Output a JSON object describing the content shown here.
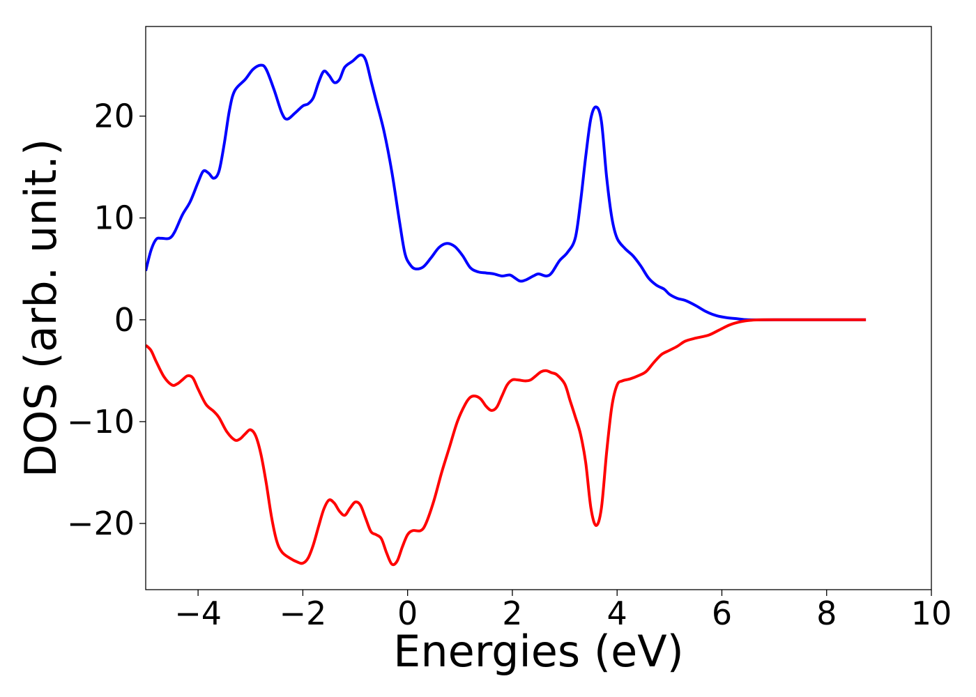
{
  "chart_data": {
    "type": "line",
    "title": "",
    "xlabel": "Energies (eV)",
    "ylabel": "DOS (arb. unit.)",
    "xlim": [
      -5,
      10
    ],
    "ylim": [
      -26.5,
      28.8
    ],
    "grid": false,
    "legend": "none",
    "x_ticks": [
      -4,
      -2,
      0,
      2,
      4,
      6,
      8,
      10
    ],
    "x_tick_labels": [
      "−4",
      "−2",
      "0",
      "2",
      "4",
      "6",
      "8",
      "10"
    ],
    "y_ticks": [
      -20,
      -10,
      0,
      10,
      20
    ],
    "y_tick_labels": [
      "−20",
      "−10",
      "0",
      "10",
      "20"
    ],
    "series": [
      {
        "color": "#0000ff",
        "points": [
          [
            -5.0,
            4.8
          ],
          [
            -4.9,
            6.8
          ],
          [
            -4.8,
            7.9
          ],
          [
            -4.7,
            8.0
          ],
          [
            -4.55,
            8.0
          ],
          [
            -4.45,
            8.6
          ],
          [
            -4.3,
            10.3
          ],
          [
            -4.15,
            11.6
          ],
          [
            -4.0,
            13.5
          ],
          [
            -3.9,
            14.6
          ],
          [
            -3.8,
            14.4
          ],
          [
            -3.7,
            13.9
          ],
          [
            -3.6,
            14.6
          ],
          [
            -3.5,
            17.3
          ],
          [
            -3.4,
            20.6
          ],
          [
            -3.3,
            22.5
          ],
          [
            -3.1,
            23.6
          ],
          [
            -2.95,
            24.6
          ],
          [
            -2.8,
            25.0
          ],
          [
            -2.7,
            24.6
          ],
          [
            -2.55,
            22.6
          ],
          [
            -2.4,
            20.3
          ],
          [
            -2.3,
            19.7
          ],
          [
            -2.15,
            20.3
          ],
          [
            -2.0,
            21.0
          ],
          [
            -1.9,
            21.2
          ],
          [
            -1.8,
            21.8
          ],
          [
            -1.7,
            23.3
          ],
          [
            -1.6,
            24.4
          ],
          [
            -1.5,
            24.0
          ],
          [
            -1.4,
            23.3
          ],
          [
            -1.3,
            23.6
          ],
          [
            -1.2,
            24.8
          ],
          [
            -1.05,
            25.4
          ],
          [
            -0.9,
            26.0
          ],
          [
            -0.8,
            25.5
          ],
          [
            -0.7,
            23.5
          ],
          [
            -0.6,
            21.5
          ],
          [
            -0.45,
            18.5
          ],
          [
            -0.3,
            14.5
          ],
          [
            -0.15,
            9.5
          ],
          [
            -0.05,
            6.5
          ],
          [
            0.05,
            5.4
          ],
          [
            0.15,
            5.0
          ],
          [
            0.3,
            5.2
          ],
          [
            0.45,
            6.1
          ],
          [
            0.6,
            7.1
          ],
          [
            0.75,
            7.5
          ],
          [
            0.9,
            7.2
          ],
          [
            1.05,
            6.3
          ],
          [
            1.2,
            5.1
          ],
          [
            1.35,
            4.7
          ],
          [
            1.5,
            4.6
          ],
          [
            1.65,
            4.5
          ],
          [
            1.8,
            4.3
          ],
          [
            1.95,
            4.4
          ],
          [
            2.05,
            4.1
          ],
          [
            2.15,
            3.8
          ],
          [
            2.25,
            3.9
          ],
          [
            2.4,
            4.3
          ],
          [
            2.5,
            4.5
          ],
          [
            2.65,
            4.3
          ],
          [
            2.75,
            4.6
          ],
          [
            2.9,
            5.8
          ],
          [
            3.05,
            6.6
          ],
          [
            3.2,
            8.0
          ],
          [
            3.3,
            11.5
          ],
          [
            3.4,
            16.0
          ],
          [
            3.5,
            19.8
          ],
          [
            3.6,
            20.9
          ],
          [
            3.7,
            19.5
          ],
          [
            3.8,
            14.0
          ],
          [
            3.9,
            10.0
          ],
          [
            4.0,
            8.0
          ],
          [
            4.15,
            7.0
          ],
          [
            4.3,
            6.3
          ],
          [
            4.45,
            5.3
          ],
          [
            4.6,
            4.1
          ],
          [
            4.75,
            3.4
          ],
          [
            4.9,
            3.0
          ],
          [
            5.0,
            2.5
          ],
          [
            5.15,
            2.1
          ],
          [
            5.3,
            1.9
          ],
          [
            5.5,
            1.4
          ],
          [
            5.7,
            0.8
          ],
          [
            5.9,
            0.4
          ],
          [
            6.1,
            0.2
          ],
          [
            6.3,
            0.1
          ],
          [
            6.5,
            0.0
          ],
          [
            7.0,
            0.0
          ],
          [
            7.5,
            0.0
          ],
          [
            8.0,
            0.0
          ],
          [
            8.5,
            0.0
          ],
          [
            8.75,
            0.0
          ]
        ]
      },
      {
        "color": "#ff0000",
        "points": [
          [
            -5.0,
            -2.5
          ],
          [
            -4.9,
            -3.0
          ],
          [
            -4.8,
            -4.1
          ],
          [
            -4.65,
            -5.6
          ],
          [
            -4.5,
            -6.4
          ],
          [
            -4.4,
            -6.3
          ],
          [
            -4.3,
            -5.9
          ],
          [
            -4.2,
            -5.5
          ],
          [
            -4.1,
            -5.7
          ],
          [
            -4.0,
            -6.8
          ],
          [
            -3.85,
            -8.3
          ],
          [
            -3.7,
            -9.0
          ],
          [
            -3.6,
            -9.6
          ],
          [
            -3.45,
            -11.0
          ],
          [
            -3.3,
            -11.8
          ],
          [
            -3.2,
            -11.7
          ],
          [
            -3.1,
            -11.2
          ],
          [
            -3.0,
            -10.8
          ],
          [
            -2.9,
            -11.4
          ],
          [
            -2.8,
            -13.2
          ],
          [
            -2.7,
            -16.0
          ],
          [
            -2.6,
            -19.3
          ],
          [
            -2.5,
            -21.7
          ],
          [
            -2.4,
            -22.8
          ],
          [
            -2.25,
            -23.4
          ],
          [
            -2.1,
            -23.8
          ],
          [
            -2.0,
            -23.9
          ],
          [
            -1.9,
            -23.4
          ],
          [
            -1.8,
            -22.1
          ],
          [
            -1.7,
            -20.3
          ],
          [
            -1.6,
            -18.6
          ],
          [
            -1.5,
            -17.7
          ],
          [
            -1.4,
            -18.0
          ],
          [
            -1.3,
            -18.8
          ],
          [
            -1.2,
            -19.2
          ],
          [
            -1.1,
            -18.5
          ],
          [
            -1.0,
            -17.9
          ],
          [
            -0.9,
            -18.2
          ],
          [
            -0.8,
            -19.5
          ],
          [
            -0.7,
            -20.8
          ],
          [
            -0.6,
            -21.1
          ],
          [
            -0.5,
            -21.5
          ],
          [
            -0.4,
            -22.9
          ],
          [
            -0.3,
            -24.0
          ],
          [
            -0.2,
            -23.7
          ],
          [
            -0.1,
            -22.3
          ],
          [
            0.0,
            -21.1
          ],
          [
            0.1,
            -20.7
          ],
          [
            0.25,
            -20.7
          ],
          [
            0.35,
            -20.0
          ],
          [
            0.5,
            -17.8
          ],
          [
            0.65,
            -15.0
          ],
          [
            0.8,
            -12.5
          ],
          [
            0.95,
            -10.0
          ],
          [
            1.1,
            -8.3
          ],
          [
            1.2,
            -7.6
          ],
          [
            1.3,
            -7.5
          ],
          [
            1.4,
            -7.8
          ],
          [
            1.5,
            -8.5
          ],
          [
            1.6,
            -8.9
          ],
          [
            1.7,
            -8.6
          ],
          [
            1.8,
            -7.5
          ],
          [
            1.9,
            -6.4
          ],
          [
            2.0,
            -5.9
          ],
          [
            2.1,
            -5.9
          ],
          [
            2.25,
            -6.0
          ],
          [
            2.35,
            -5.9
          ],
          [
            2.45,
            -5.5
          ],
          [
            2.55,
            -5.1
          ],
          [
            2.65,
            -5.0
          ],
          [
            2.75,
            -5.2
          ],
          [
            2.85,
            -5.4
          ],
          [
            3.0,
            -6.3
          ],
          [
            3.1,
            -7.9
          ],
          [
            3.2,
            -9.5
          ],
          [
            3.3,
            -11.2
          ],
          [
            3.4,
            -14.0
          ],
          [
            3.5,
            -18.5
          ],
          [
            3.6,
            -20.2
          ],
          [
            3.7,
            -18.5
          ],
          [
            3.8,
            -13.0
          ],
          [
            3.9,
            -8.5
          ],
          [
            4.0,
            -6.4
          ],
          [
            4.1,
            -6.0
          ],
          [
            4.25,
            -5.8
          ],
          [
            4.4,
            -5.5
          ],
          [
            4.55,
            -5.1
          ],
          [
            4.7,
            -4.2
          ],
          [
            4.85,
            -3.4
          ],
          [
            5.0,
            -3.0
          ],
          [
            5.15,
            -2.6
          ],
          [
            5.3,
            -2.1
          ],
          [
            5.5,
            -1.8
          ],
          [
            5.75,
            -1.5
          ],
          [
            5.95,
            -1.0
          ],
          [
            6.15,
            -0.5
          ],
          [
            6.35,
            -0.2
          ],
          [
            6.55,
            -0.05
          ],
          [
            6.8,
            0.0
          ],
          [
            7.5,
            0.0
          ],
          [
            8.0,
            0.0
          ],
          [
            8.5,
            0.0
          ],
          [
            8.75,
            0.0
          ]
        ]
      }
    ]
  }
}
